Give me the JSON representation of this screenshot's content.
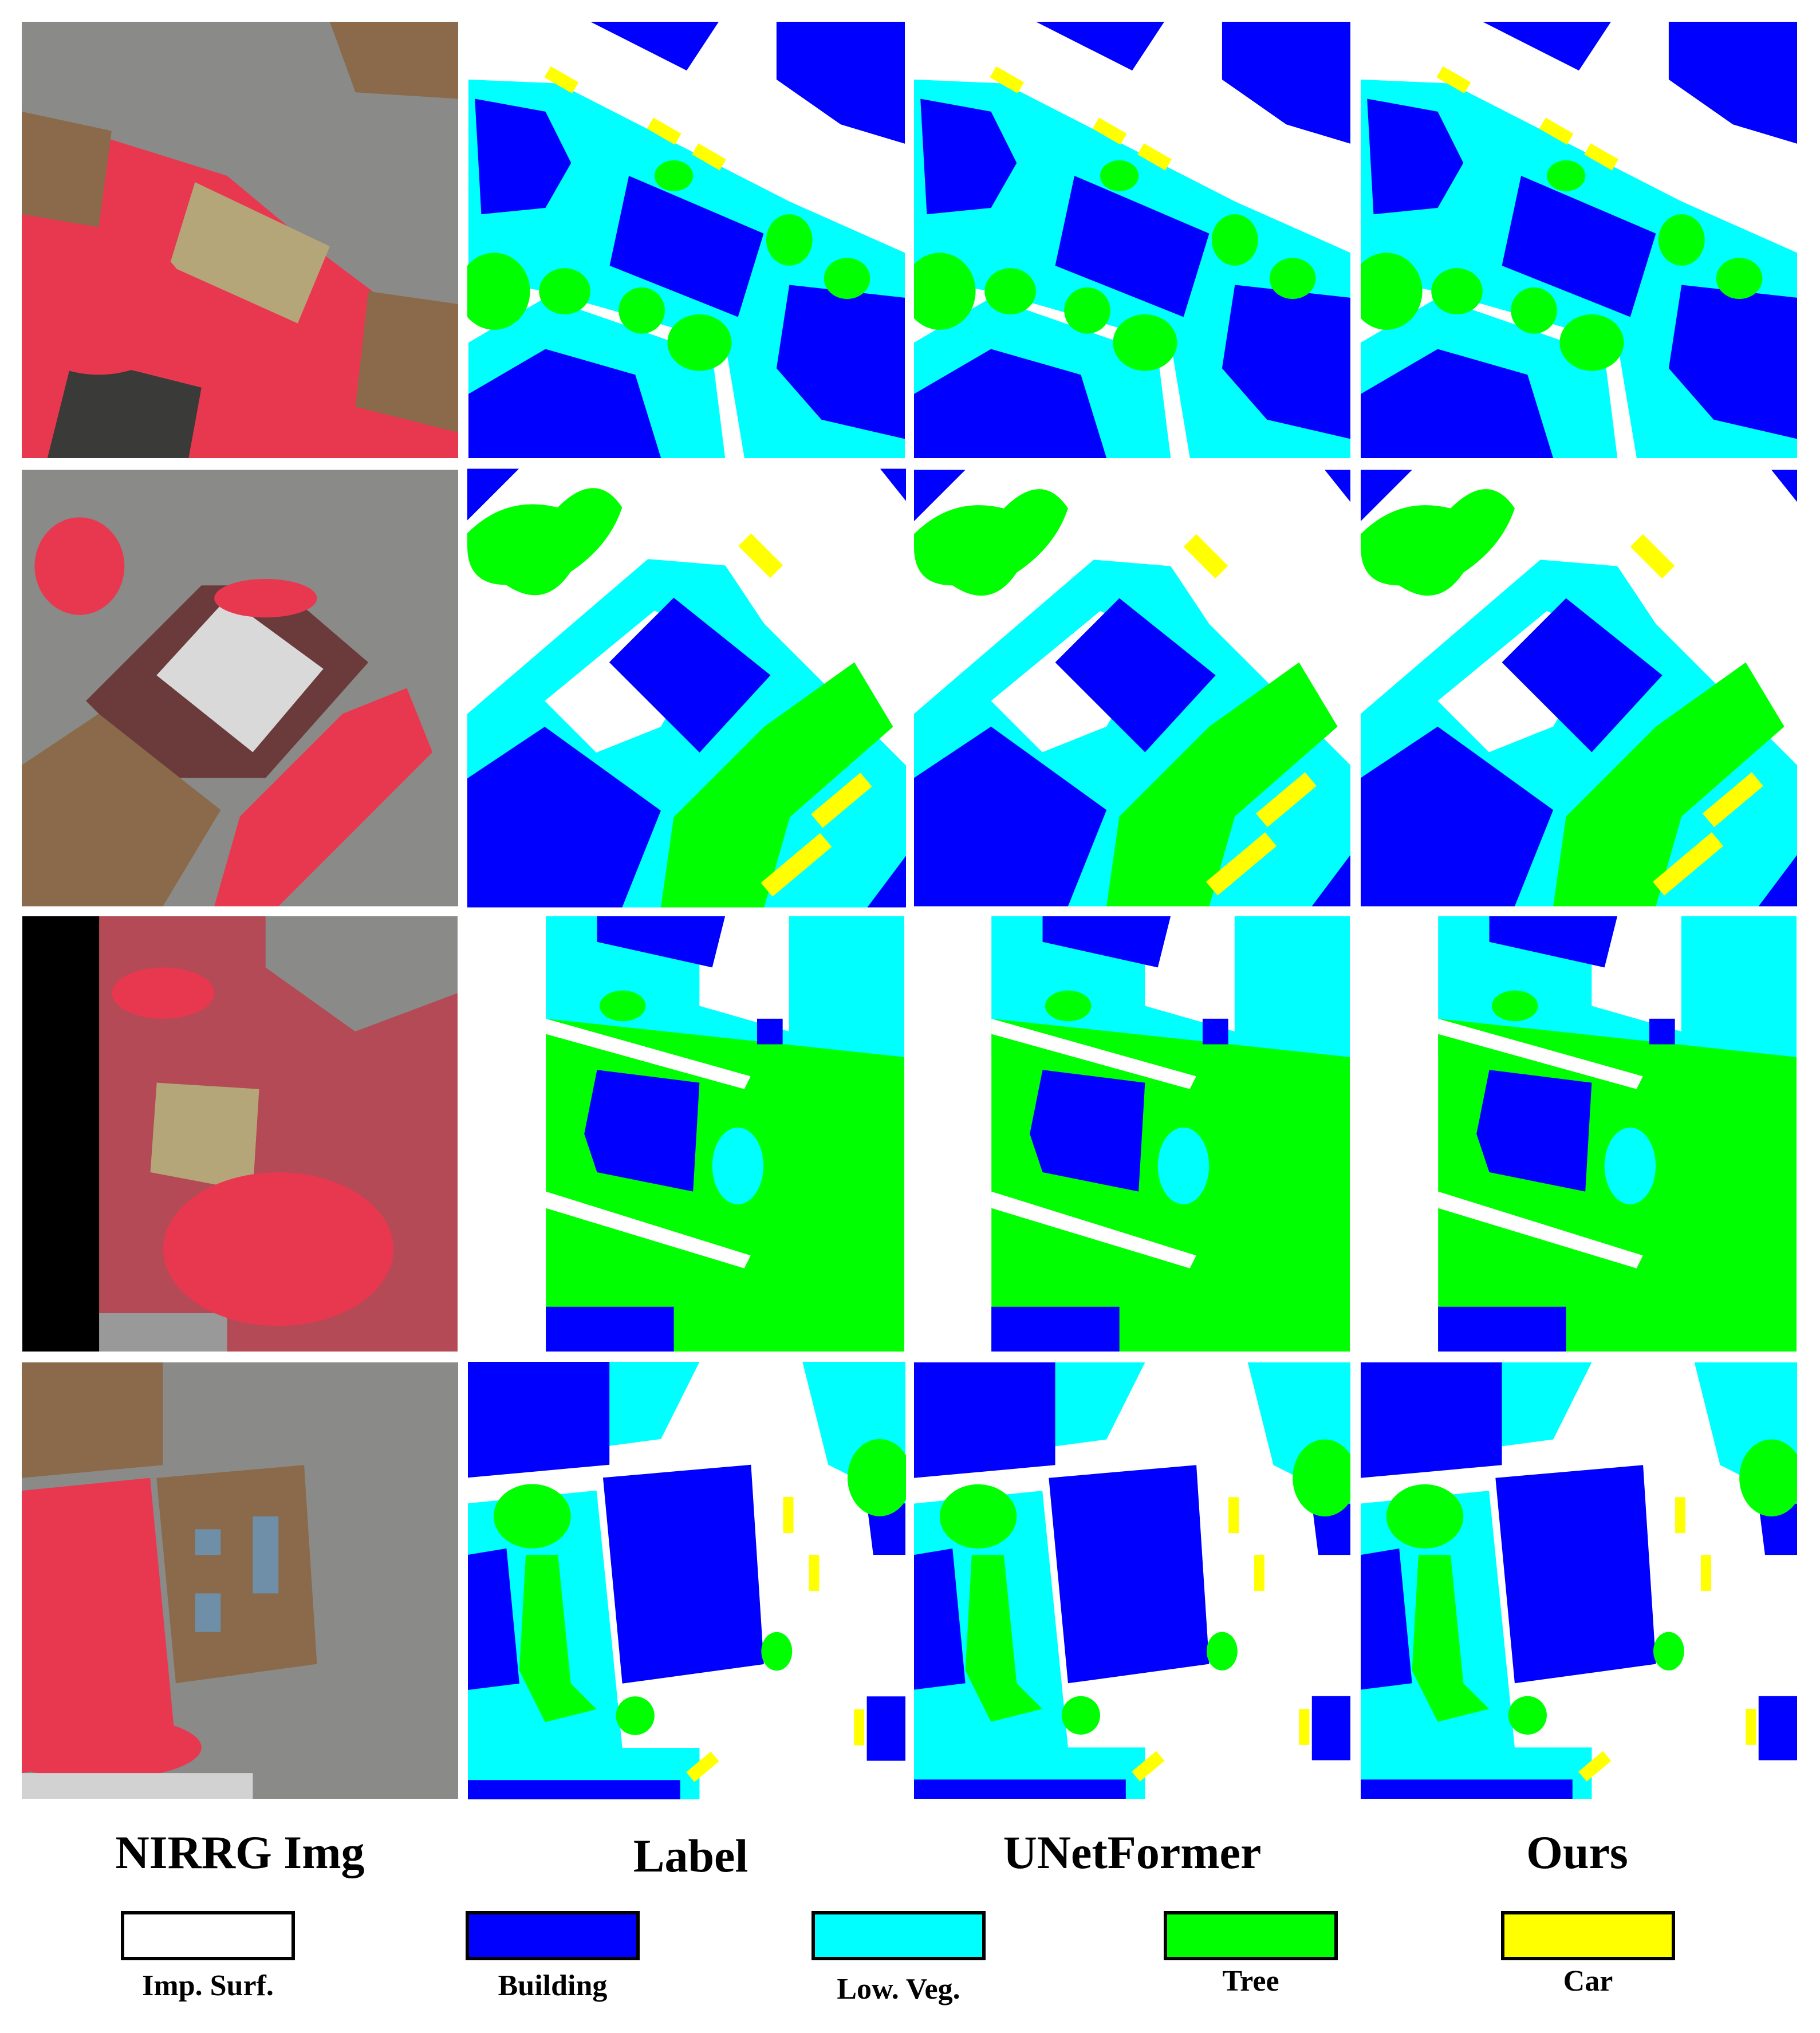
{
  "headers": [
    "NIRRG Img",
    "Label",
    "UNetFormer",
    "Ours"
  ],
  "legend": [
    {
      "label": "Imp. Surf.",
      "color": "#ffffff"
    },
    {
      "label": "Building",
      "color": "#0000ff"
    },
    {
      "label": "Low. Veg.",
      "color": "#00ffff"
    },
    {
      "label": "Tree",
      "color": "#00ff00"
    },
    {
      "label": "Car",
      "color": "#ffff00"
    }
  ]
}
